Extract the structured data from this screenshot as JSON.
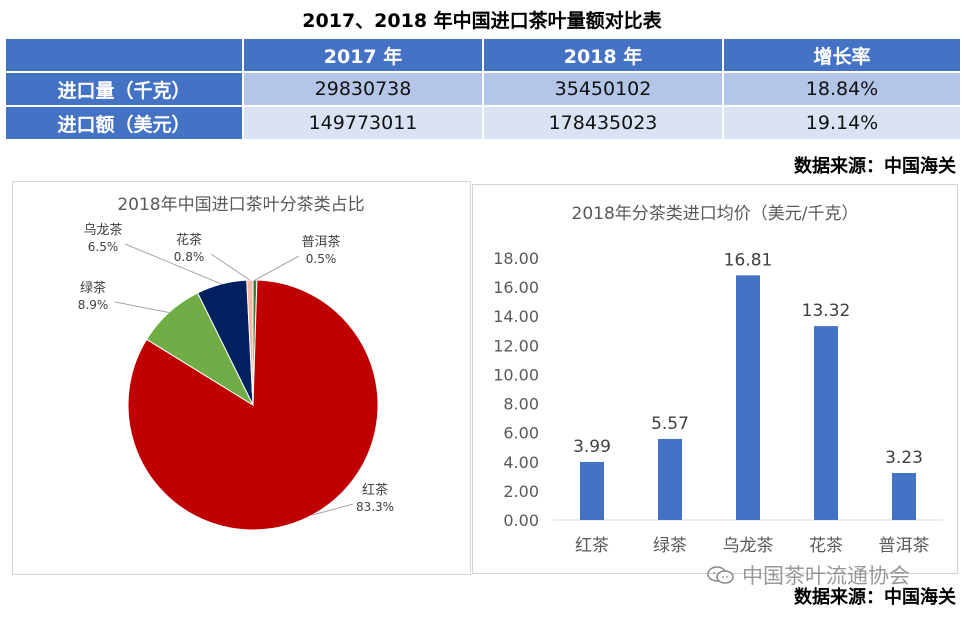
{
  "page_title": "2017、2018 年中国进口茶叶量额对比表",
  "table": {
    "headers": [
      "",
      "2017 年",
      "2018 年",
      "增长率"
    ],
    "rows": [
      {
        "label": "进口量（千克）",
        "cells": [
          "29830738",
          "35450102",
          "18.84%"
        ]
      },
      {
        "label": "进口额（美元）",
        "cells": [
          "149773011",
          "178435023",
          "19.14%"
        ]
      }
    ]
  },
  "source_top": "数据来源：中国海关",
  "source_bottom": "数据来源：中国海关",
  "watermark": "中国茶叶流通协会",
  "chart_data": [
    {
      "type": "pie",
      "title": "2018年中国进口茶叶分茶类占比",
      "slices": [
        {
          "label": "红茶",
          "value": 83.3,
          "display": "83.3%",
          "color": "#c00000"
        },
        {
          "label": "绿茶",
          "value": 8.9,
          "display": "8.9%",
          "color": "#70ad47"
        },
        {
          "label": "乌龙茶",
          "value": 6.5,
          "display": "6.5%",
          "color": "#002060"
        },
        {
          "label": "花茶",
          "value": 0.8,
          "display": "0.8%",
          "color": "#f4b6a6"
        },
        {
          "label": "普洱茶",
          "value": 0.5,
          "display": "0.5%",
          "color": "#3a7d3a"
        }
      ]
    },
    {
      "type": "bar",
      "title": "2018年分茶类进口均价（美元/千克）",
      "categories": [
        "红茶",
        "绿茶",
        "乌龙茶",
        "花茶",
        "普洱茶"
      ],
      "values": [
        3.99,
        5.57,
        16.81,
        13.32,
        3.23
      ],
      "value_labels": [
        "3.99",
        "5.57",
        "16.81",
        "13.32",
        "3.23"
      ],
      "ylim": [
        0,
        18
      ],
      "yticks": [
        "0.00",
        "2.00",
        "4.00",
        "6.00",
        "8.00",
        "10.00",
        "12.00",
        "14.00",
        "16.00",
        "18.00"
      ],
      "bar_color": "#4472c4",
      "grid": false
    }
  ]
}
